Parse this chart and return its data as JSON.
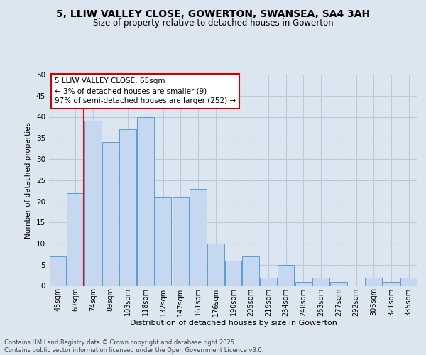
{
  "title": "5, LLIW VALLEY CLOSE, GOWERTON, SWANSEA, SA4 3AH",
  "subtitle": "Size of property relative to detached houses in Gowerton",
  "xlabel": "Distribution of detached houses by size in Gowerton",
  "ylabel": "Number of detached properties",
  "categories": [
    "45sqm",
    "60sqm",
    "74sqm",
    "89sqm",
    "103sqm",
    "118sqm",
    "132sqm",
    "147sqm",
    "161sqm",
    "176sqm",
    "190sqm",
    "205sqm",
    "219sqm",
    "234sqm",
    "248sqm",
    "263sqm",
    "277sqm",
    "292sqm",
    "306sqm",
    "321sqm",
    "335sqm"
  ],
  "values": [
    7,
    22,
    39,
    34,
    37,
    40,
    21,
    21,
    23,
    10,
    6,
    7,
    2,
    5,
    1,
    2,
    1,
    0,
    2,
    1,
    2
  ],
  "bar_color": "#c5d8f0",
  "bar_edge_color": "#5b9bd5",
  "grid_color": "#c0c8d8",
  "background_color": "#dce6f1",
  "red_line_x": 1.5,
  "annotation_text": "5 LLIW VALLEY CLOSE: 65sqm\n← 3% of detached houses are smaller (9)\n97% of semi-detached houses are larger (252) →",
  "annotation_box_color": "#ffffff",
  "annotation_border_color": "#cc0000",
  "footer": "Contains HM Land Registry data © Crown copyright and database right 2025.\nContains public sector information licensed under the Open Government Licence v3.0.",
  "ylim": [
    0,
    50
  ],
  "yticks": [
    0,
    5,
    10,
    15,
    20,
    25,
    30,
    35,
    40,
    45,
    50
  ]
}
